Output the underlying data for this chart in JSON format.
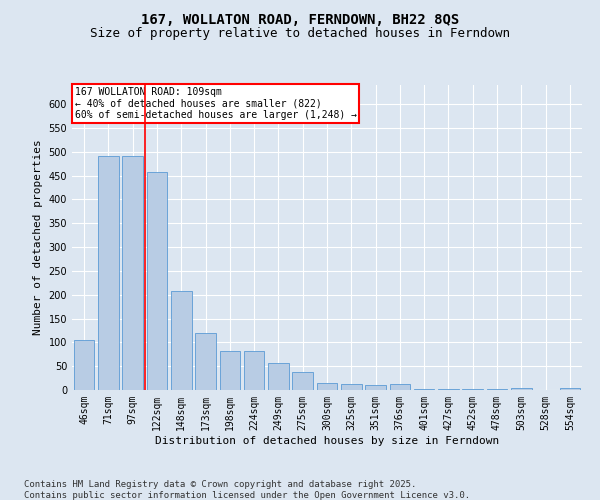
{
  "title": "167, WOLLATON ROAD, FERNDOWN, BH22 8QS",
  "subtitle": "Size of property relative to detached houses in Ferndown",
  "xlabel": "Distribution of detached houses by size in Ferndown",
  "ylabel": "Number of detached properties",
  "footer": "Contains HM Land Registry data © Crown copyright and database right 2025.\nContains public sector information licensed under the Open Government Licence v3.0.",
  "categories": [
    "46sqm",
    "71sqm",
    "97sqm",
    "122sqm",
    "148sqm",
    "173sqm",
    "198sqm",
    "224sqm",
    "249sqm",
    "275sqm",
    "300sqm",
    "325sqm",
    "351sqm",
    "376sqm",
    "401sqm",
    "427sqm",
    "452sqm",
    "478sqm",
    "503sqm",
    "528sqm",
    "554sqm"
  ],
  "values": [
    105,
    490,
    490,
    458,
    207,
    120,
    82,
    82,
    57,
    38,
    14,
    13,
    10,
    13,
    2,
    2,
    2,
    2,
    5,
    1,
    4
  ],
  "bar_color": "#b8cce4",
  "bar_edge_color": "#5b9bd5",
  "vline_x": 2.5,
  "vline_color": "red",
  "annotation_title": "167 WOLLATON ROAD: 109sqm",
  "annotation_line1": "← 40% of detached houses are smaller (822)",
  "annotation_line2": "60% of semi-detached houses are larger (1,248) →",
  "annotation_box_color": "red",
  "annotation_fill": "white",
  "ylim": [
    0,
    640
  ],
  "yticks": [
    0,
    50,
    100,
    150,
    200,
    250,
    300,
    350,
    400,
    450,
    500,
    550,
    600
  ],
  "bg_color": "#dce6f1",
  "plot_bg": "#dce6f1",
  "grid_color": "white",
  "title_fontsize": 10,
  "subtitle_fontsize": 9,
  "axis_label_fontsize": 8,
  "tick_fontsize": 7,
  "footer_fontsize": 6.5
}
